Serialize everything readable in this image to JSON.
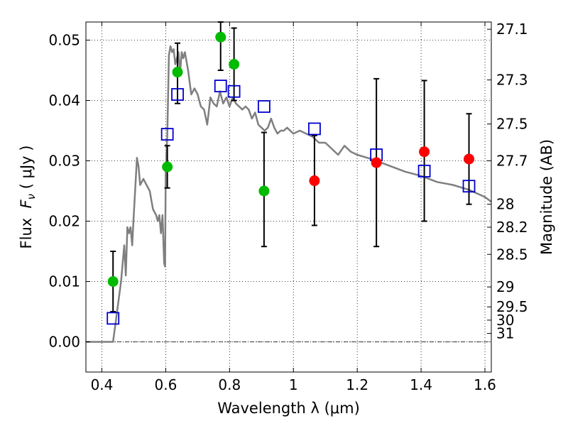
{
  "chart_data": {
    "type": "scatter",
    "xlabel": "Wavelength  λ (μm)",
    "ylabel": "Flux  F_ν  ( μJy )",
    "ylabel_right": "Magnitude (AB)",
    "xlim": [
      0.35,
      1.62
    ],
    "ylim": [
      -0.005,
      0.053
    ],
    "grid": true,
    "x_ticks": [
      0.4,
      0.6,
      0.8,
      1.0,
      1.2,
      1.4,
      1.6
    ],
    "x_tick_labels": [
      "0.4",
      "0.6",
      "0.8",
      "1",
      "1.2",
      "1.4",
      "1.6"
    ],
    "y_ticks": [
      0.0,
      0.01,
      0.02,
      0.03,
      0.04,
      0.05
    ],
    "y_tick_labels": [
      "0.00",
      "0.01",
      "0.02",
      "0.03",
      "0.04",
      "0.05"
    ],
    "right_ticks": [
      {
        "label": "27.1",
        "flux": 0.0518
      },
      {
        "label": "27.3",
        "flux": 0.0434
      },
      {
        "label": "27.5",
        "flux": 0.0361
      },
      {
        "label": "27.7",
        "flux": 0.03
      },
      {
        "label": "28",
        "flux": 0.0228
      },
      {
        "label": "28.2",
        "flux": 0.019
      },
      {
        "label": "28.5",
        "flux": 0.0145
      },
      {
        "label": "29",
        "flux": 0.0091
      },
      {
        "label": "29.5",
        "flux": 0.0058
      },
      {
        "label": "30",
        "flux": 0.0036
      },
      {
        "label": "31",
        "flux": 0.0014
      }
    ],
    "model_spectrum": {
      "color": "#7f7f7f",
      "x": [
        0.35,
        0.43,
        0.435,
        0.44,
        0.45,
        0.46,
        0.47,
        0.475,
        0.48,
        0.485,
        0.49,
        0.495,
        0.5,
        0.51,
        0.515,
        0.52,
        0.53,
        0.54,
        0.55,
        0.56,
        0.57,
        0.575,
        0.58,
        0.585,
        0.59,
        0.595,
        0.598,
        0.6,
        0.605,
        0.61,
        0.615,
        0.62,
        0.625,
        0.63,
        0.64,
        0.645,
        0.65,
        0.655,
        0.66,
        0.67,
        0.68,
        0.69,
        0.7,
        0.705,
        0.71,
        0.72,
        0.73,
        0.74,
        0.75,
        0.76,
        0.77,
        0.78,
        0.79,
        0.8,
        0.81,
        0.82,
        0.83,
        0.84,
        0.85,
        0.86,
        0.87,
        0.88,
        0.89,
        0.9,
        0.91,
        0.92,
        0.93,
        0.94,
        0.95,
        0.96,
        0.97,
        0.98,
        0.99,
        1.0,
        1.02,
        1.04,
        1.06,
        1.08,
        1.1,
        1.12,
        1.14,
        1.16,
        1.18,
        1.2,
        1.25,
        1.3,
        1.35,
        1.4,
        1.45,
        1.5,
        1.55,
        1.6,
        1.62
      ],
      "y": [
        0.0,
        0.0,
        0.0,
        0.002,
        0.006,
        0.01,
        0.016,
        0.011,
        0.019,
        0.018,
        0.019,
        0.016,
        0.021,
        0.0305,
        0.029,
        0.026,
        0.027,
        0.026,
        0.025,
        0.022,
        0.021,
        0.02,
        0.021,
        0.018,
        0.021,
        0.013,
        0.0125,
        0.028,
        0.034,
        0.0475,
        0.049,
        0.048,
        0.0485,
        0.046,
        0.048,
        0.0445,
        0.048,
        0.047,
        0.048,
        0.045,
        0.041,
        0.042,
        0.041,
        0.04,
        0.039,
        0.0385,
        0.036,
        0.0405,
        0.0395,
        0.039,
        0.0415,
        0.0395,
        0.0405,
        0.039,
        0.0405,
        0.0395,
        0.039,
        0.0385,
        0.039,
        0.0385,
        0.037,
        0.038,
        0.036,
        0.0355,
        0.035,
        0.0355,
        0.037,
        0.0355,
        0.0345,
        0.035,
        0.035,
        0.0355,
        0.035,
        0.0345,
        0.035,
        0.0345,
        0.034,
        0.033,
        0.033,
        0.032,
        0.031,
        0.0325,
        0.0315,
        0.031,
        0.0302,
        0.0292,
        0.0282,
        0.0275,
        0.0265,
        0.026,
        0.0252,
        0.024,
        0.0232
      ]
    },
    "green_points": {
      "color": "#00bb00",
      "points": [
        {
          "x": 0.435,
          "y": 0.01,
          "err_low": 0.005,
          "err_high": 0.015
        },
        {
          "x": 0.605,
          "y": 0.029,
          "err_low": 0.0255,
          "err_high": 0.0325
        },
        {
          "x": 0.637,
          "y": 0.0447,
          "err_low": 0.0395,
          "err_high": 0.0495
        },
        {
          "x": 0.772,
          "y": 0.0505,
          "err_low": 0.045,
          "err_high": 0.053
        },
        {
          "x": 0.814,
          "y": 0.046,
          "err_low": 0.04,
          "err_high": 0.052
        },
        {
          "x": 0.908,
          "y": 0.025,
          "err_low": 0.0158,
          "err_high": 0.0347
        }
      ]
    },
    "red_points": {
      "color": "#ff0000",
      "points": [
        {
          "x": 1.066,
          "y": 0.0267,
          "err_low": 0.0193,
          "err_high": 0.0342
        },
        {
          "x": 1.26,
          "y": 0.0297,
          "err_low": 0.0158,
          "err_high": 0.0436
        },
        {
          "x": 1.41,
          "y": 0.0315,
          "err_low": 0.02,
          "err_high": 0.0433
        },
        {
          "x": 1.55,
          "y": 0.0303,
          "err_low": 0.0228,
          "err_high": 0.0378
        }
      ]
    },
    "blue_squares": {
      "color": "#0000cc",
      "points": [
        {
          "x": 0.435,
          "y": 0.0039
        },
        {
          "x": 0.605,
          "y": 0.0344
        },
        {
          "x": 0.637,
          "y": 0.041
        },
        {
          "x": 0.772,
          "y": 0.0424
        },
        {
          "x": 0.814,
          "y": 0.0415
        },
        {
          "x": 0.908,
          "y": 0.039
        },
        {
          "x": 1.066,
          "y": 0.0353
        },
        {
          "x": 1.26,
          "y": 0.031
        },
        {
          "x": 1.41,
          "y": 0.0283
        },
        {
          "x": 1.55,
          "y": 0.0258
        }
      ]
    },
    "zero_line": true
  }
}
